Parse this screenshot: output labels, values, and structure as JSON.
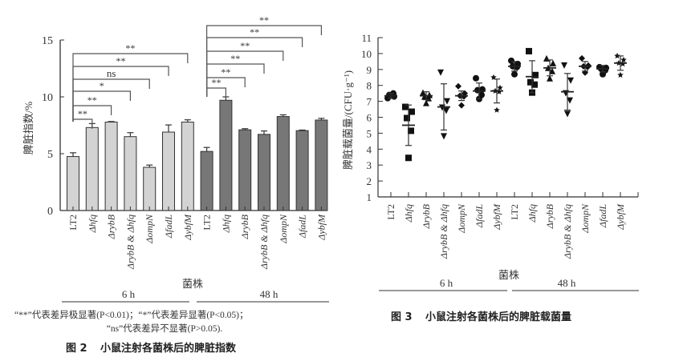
{
  "strains": [
    "LT2",
    "Δhfq",
    "ΔrybB",
    "ΔrybB & Δhfq",
    "ΔompN",
    "ΔfadL",
    "ΔybfM"
  ],
  "groups": [
    "6 h",
    "48 h"
  ],
  "xlabel": "菌株",
  "chart_data": [
    {
      "type": "bar",
      "ylabel": "脾脏指数/%",
      "xlabel": "菌株",
      "ylim": [
        0,
        15
      ],
      "yticks": [
        0,
        5,
        10,
        15
      ],
      "categories": [
        "LT2",
        "Δhfq",
        "ΔrybB",
        "ΔrybB & Δhfq",
        "ΔompN",
        "ΔfadL",
        "ΔybfM"
      ],
      "series": [
        {
          "name": "6 h",
          "color": "#d3d3d3",
          "values": [
            4.75,
            7.3,
            7.78,
            6.5,
            3.8,
            6.9,
            7.78
          ],
          "errors": [
            0.33,
            0.35,
            0.05,
            0.35,
            0.2,
            0.63,
            0.2
          ]
        },
        {
          "name": "48 h",
          "color": "#777777",
          "values": [
            5.2,
            9.7,
            7.1,
            6.7,
            8.27,
            7.03,
            7.96
          ],
          "errors": [
            0.35,
            0.3,
            0.1,
            0.3,
            0.15,
            0.05,
            0.15
          ]
        }
      ],
      "significance": {
        "6 h": [
          "**",
          "**",
          "*",
          "ns",
          "**",
          "**"
        ],
        "48 h": [
          "**",
          "**",
          "**",
          "**",
          "**",
          "**"
        ]
      },
      "footnote": [
        "“**”代表差异极显著(P<0.01)；“*”代表差异显著(P<0.05)；",
        "“ns”代表差异不显著(P>0.05)."
      ],
      "caption_num": "图 2",
      "caption": "小鼠注射各菌株后的脾脏指数"
    },
    {
      "type": "scatter",
      "ylabel": "脾脏载菌量/(CFU·g⁻¹)",
      "xlabel": "菌株",
      "ylim": [
        1,
        11
      ],
      "yticks": [
        1,
        2,
        3,
        4,
        5,
        6,
        7,
        8,
        9,
        10,
        11
      ],
      "categories": [
        "LT2",
        "Δhfq",
        "ΔrybB",
        "ΔrybB & Δhfq",
        "ΔompN",
        "ΔfadL",
        "ΔybfM"
      ],
      "markers": [
        "circle",
        "square",
        "triangle",
        "triangle-down",
        "diamond",
        "circle",
        "star"
      ],
      "series": [
        {
          "name": "6 h",
          "means": [
            7.35,
            5.5,
            7.35,
            6.65,
            7.35,
            7.65,
            7.65
          ],
          "sd": [
            0.15,
            1.27,
            0.25,
            1.45,
            0.3,
            0.5,
            0.75
          ],
          "points": [
            [
              7.2,
              7.3,
              7.4,
              7.5,
              7.35
            ],
            [
              6.65,
              6.35,
              5.95,
              5.15,
              3.45
            ],
            [
              7.55,
              7.4,
              7.3,
              7.2,
              6.9
            ],
            [
              8.8,
              7.0,
              6.6,
              6.4,
              4.8
            ],
            [
              7.95,
              7.5,
              7.35,
              7.3,
              6.75
            ],
            [
              8.45,
              7.75,
              7.7,
              7.4,
              7.15
            ],
            [
              8.5,
              7.85,
              7.65,
              7.6,
              6.45
            ]
          ]
        },
        {
          "name": "48 h",
          "means": [
            9.2,
            8.55,
            9.1,
            7.6,
            9.2,
            9.05,
            9.4
          ],
          "sd": [
            0.3,
            1.0,
            0.5,
            1.15,
            0.3,
            0.2,
            0.45
          ],
          "points": [
            [
              9.55,
              9.35,
              9.2,
              9.15,
              8.7
            ],
            [
              10.15,
              8.65,
              8.2,
              8.05,
              7.55
            ],
            [
              9.7,
              9.4,
              9.1,
              8.9,
              8.45
            ],
            [
              9.25,
              8.3,
              7.5,
              7.05,
              6.2
            ],
            [
              9.7,
              9.25,
              9.2,
              9.15,
              8.8
            ],
            [
              9.15,
              9.1,
              9.05,
              8.95,
              8.7
            ],
            [
              9.85,
              9.6,
              9.4,
              9.35,
              8.65
            ]
          ]
        }
      ],
      "caption_num": "图 3",
      "caption": "小鼠注射各菌株后的脾脏载菌量"
    }
  ]
}
